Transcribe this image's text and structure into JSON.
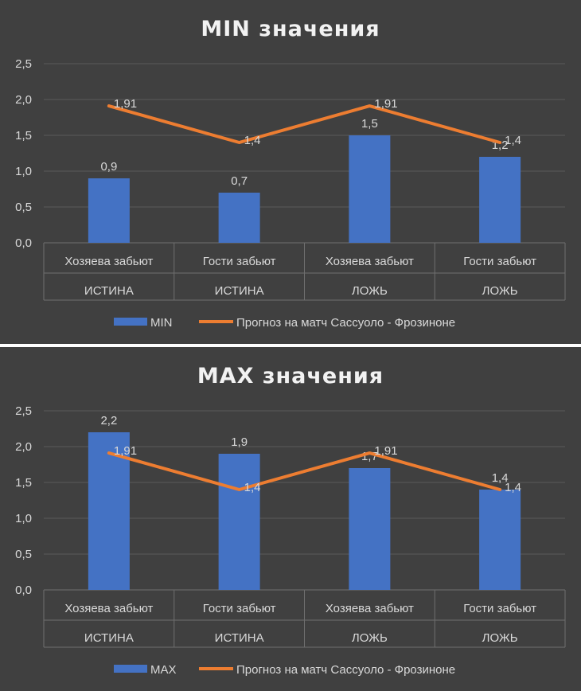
{
  "chart_data": [
    {
      "type": "bar",
      "title": "MIN значения",
      "categories": [
        {
          "line1": "Хозяева забьют",
          "line2": "ИСТИНА"
        },
        {
          "line1": "Гости забьют",
          "line2": "ИСТИНА"
        },
        {
          "line1": "Хозяева забьют",
          "line2": "ЛОЖЬ"
        },
        {
          "line1": "Гости забьют",
          "line2": "ЛОЖЬ"
        }
      ],
      "series": [
        {
          "name": "MIN",
          "kind": "bar",
          "color": "#4472c4",
          "values": [
            0.9,
            0.7,
            1.5,
            1.2
          ],
          "labels": [
            "0,9",
            "0,7",
            "1,5",
            "1,2"
          ]
        },
        {
          "name": "Прогноз на матч Сассуоло - Фрозиноне",
          "kind": "line",
          "color": "#ed7d31",
          "values": [
            1.91,
            1.4,
            1.91,
            1.4
          ],
          "labels": [
            "1,91",
            "1,4",
            "1,91",
            "1,4"
          ]
        }
      ],
      "ylim": [
        0,
        2.5
      ],
      "yticks": [
        0,
        0.5,
        1.0,
        1.5,
        2.0,
        2.5
      ],
      "ytick_labels": [
        "0,0",
        "0,5",
        "1,0",
        "1,5",
        "2,0",
        "2,5"
      ],
      "grid": true,
      "legend": "bottom"
    },
    {
      "type": "bar",
      "title": "MAX значения",
      "categories": [
        {
          "line1": "Хозяева забьют",
          "line2": "ИСТИНА"
        },
        {
          "line1": "Гости забьют",
          "line2": "ИСТИНА"
        },
        {
          "line1": "Хозяева забьют",
          "line2": "ЛОЖЬ"
        },
        {
          "line1": "Гости забьют",
          "line2": "ЛОЖЬ"
        }
      ],
      "series": [
        {
          "name": "MAX",
          "kind": "bar",
          "color": "#4472c4",
          "values": [
            2.2,
            1.9,
            1.7,
            1.4
          ],
          "labels": [
            "2,2",
            "1,9",
            "1,7",
            "1,4"
          ]
        },
        {
          "name": "Прогноз на матч Сассуоло - Фрозиноне",
          "kind": "line",
          "color": "#ed7d31",
          "values": [
            1.91,
            1.4,
            1.91,
            1.4
          ],
          "labels": [
            "1,91",
            "1,4",
            "1,91",
            "1,4"
          ]
        }
      ],
      "ylim": [
        0,
        2.5
      ],
      "yticks": [
        0,
        0.5,
        1.0,
        1.5,
        2.0,
        2.5
      ],
      "ytick_labels": [
        "0,0",
        "0,5",
        "1,0",
        "1,5",
        "2,0",
        "2,5"
      ],
      "grid": true,
      "legend": "bottom"
    }
  ]
}
